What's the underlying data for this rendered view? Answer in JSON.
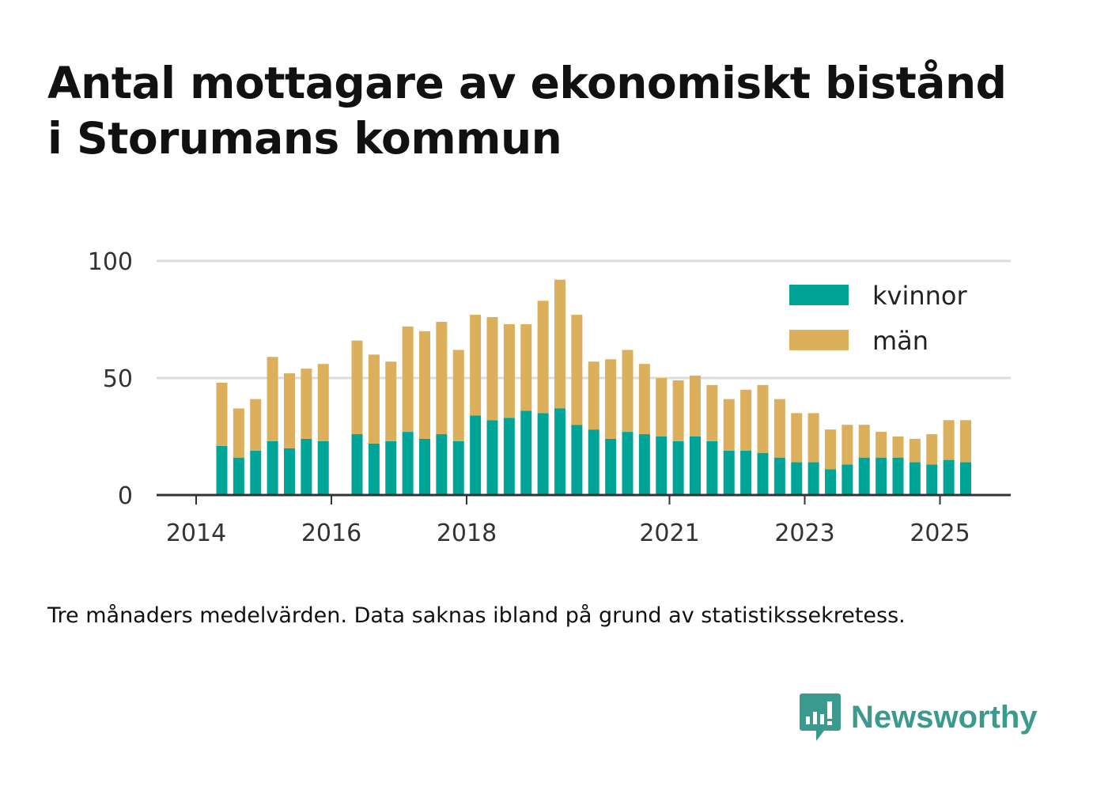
{
  "header": {
    "title_line1": "Antal mottagare av ekonomiskt bistånd",
    "title_line2": "i Storumans kommun"
  },
  "footnote": "Tre månaders medelvärden. Data saknas ibland på grund av statistikssekretess.",
  "brand": {
    "name": "Newsworthy",
    "icon": "newsworthy-logo-icon",
    "color": "#3a9a8e"
  },
  "chart_data": {
    "type": "bar",
    "stacked": true,
    "title": "Antal mottagare av ekonomiskt bistånd i Storumans kommun",
    "xlabel": "",
    "ylabel": "",
    "ylim": [
      0,
      100
    ],
    "y_ticks": [
      0,
      50,
      100
    ],
    "x_ticks": [
      "2014",
      "2016",
      "2018",
      "2021",
      "2023",
      "2025"
    ],
    "grid": true,
    "legend_position": "top-right",
    "periods": [
      "2014-05",
      "2014-08",
      "2014-11",
      "2015-02",
      "2015-05",
      "2015-08",
      "2015-11",
      "2016-02",
      "2016-05",
      "2016-08",
      "2016-11",
      "2017-02",
      "2017-05",
      "2017-08",
      "2017-11",
      "2018-02",
      "2018-05",
      "2018-08",
      "2018-11",
      "2019-02",
      "2019-05",
      "2019-08",
      "2019-11",
      "2020-02",
      "2020-05",
      "2020-08",
      "2020-11",
      "2021-02",
      "2021-05",
      "2021-08",
      "2021-11",
      "2022-02",
      "2022-05",
      "2022-08",
      "2022-11",
      "2023-02",
      "2023-05",
      "2023-08",
      "2023-11",
      "2024-02",
      "2024-05",
      "2024-08",
      "2024-11",
      "2025-02",
      "2025-05"
    ],
    "series": [
      {
        "name": "kvinnor",
        "color": "#00a598",
        "values": [
          21,
          16,
          19,
          23,
          20,
          24,
          23,
          null,
          26,
          22,
          23,
          27,
          24,
          26,
          23,
          34,
          32,
          33,
          36,
          35,
          37,
          30,
          28,
          24,
          27,
          26,
          25,
          23,
          25,
          23,
          19,
          19,
          18,
          16,
          14,
          14,
          11,
          13,
          16,
          16,
          16,
          14,
          13,
          15,
          14
        ]
      },
      {
        "name": "män",
        "color": "#dbaf5c",
        "values": [
          27,
          21,
          22,
          36,
          32,
          30,
          33,
          null,
          40,
          38,
          34,
          45,
          46,
          48,
          39,
          43,
          44,
          40,
          37,
          48,
          55,
          47,
          29,
          34,
          35,
          30,
          25,
          26,
          26,
          24,
          22,
          26,
          29,
          25,
          21,
          21,
          17,
          17,
          14,
          11,
          9,
          10,
          13,
          17,
          18
        ]
      }
    ]
  }
}
